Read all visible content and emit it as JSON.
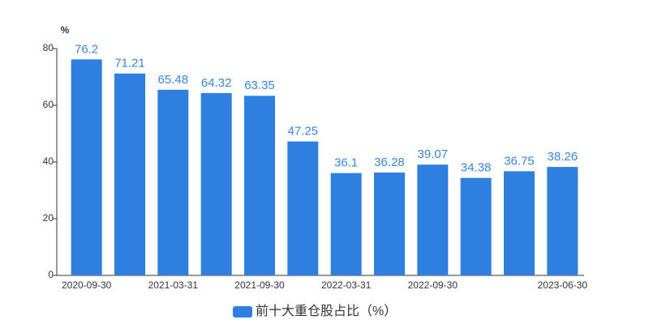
{
  "chart_data": {
    "type": "bar",
    "y_unit_label": "%",
    "legend": "前十大重仓股占比（%）",
    "color": "#2f7fe0",
    "categories": [
      "2020-09-30",
      null,
      "2021-03-31",
      null,
      "2021-09-30",
      null,
      "2022-03-31",
      null,
      "2022-09-30",
      null,
      null,
      "2023-06-30"
    ],
    "values": [
      76.2,
      71.21,
      65.48,
      64.32,
      63.35,
      47.25,
      36.1,
      36.28,
      39.07,
      34.38,
      36.75,
      38.26
    ],
    "ylim": [
      0,
      80
    ],
    "yticks": [
      0,
      20,
      40,
      60,
      80
    ]
  }
}
